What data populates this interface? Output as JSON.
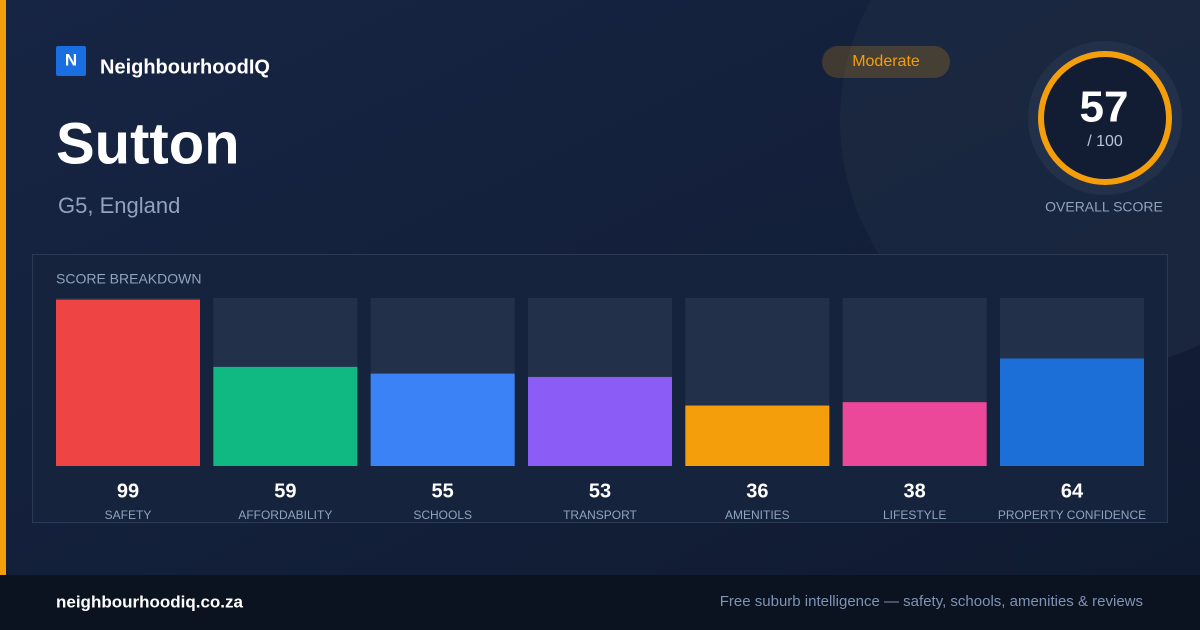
{
  "brand": "NeighbourhoodIQ",
  "logo_letter": "N",
  "place": "Sutton",
  "location": "G5, England",
  "badge": "Moderate",
  "overall": {
    "score": 57,
    "max": "/ 100",
    "label": "OVERALL SCORE"
  },
  "chart_data": {
    "type": "bar",
    "title": "SCORE BREAKDOWN",
    "categories": [
      "SAFETY",
      "AFFORDABILITY",
      "SCHOOLS",
      "TRANSPORT",
      "AMENITIES",
      "LIFESTYLE",
      "PROPERTY CONFIDENCE"
    ],
    "values": [
      99,
      59,
      55,
      53,
      36,
      38,
      64
    ],
    "colors": [
      "#ef4444",
      "#10b981",
      "#3b82f6",
      "#8b5cf6",
      "#f59e0b",
      "#ec4899",
      "#1d6fd8"
    ],
    "ylim": [
      0,
      100
    ]
  },
  "footer": {
    "site": "neighbourhoodiq.co.za",
    "tagline": "Free suburb intelligence — safety, schools, amenities & reviews"
  }
}
